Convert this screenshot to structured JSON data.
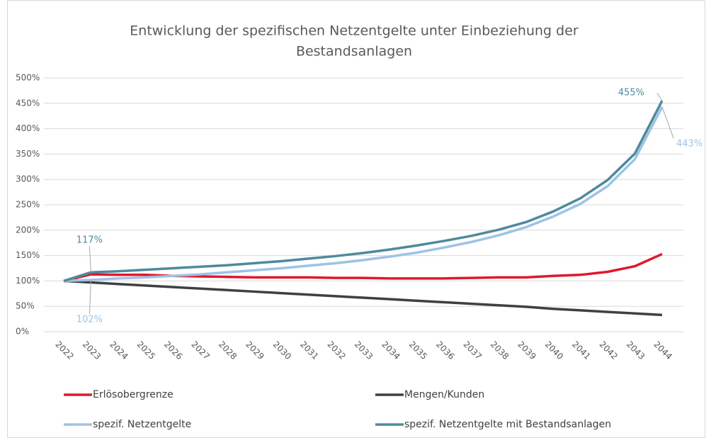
{
  "chart_data": {
    "type": "line",
    "title": [
      "Entwicklung der spezifischen Netzentgelte unter Einbeziehung der",
      "Bestandsanlagen"
    ],
    "categories": [
      "2022",
      "2023",
      "2024",
      "2025",
      "2026",
      "2027",
      "2028",
      "2029",
      "2030",
      "2031",
      "2032",
      "2033",
      "2034",
      "2035",
      "2036",
      "2037",
      "2038",
      "2039",
      "2040",
      "2041",
      "2042",
      "2043",
      "2044"
    ],
    "ylim": [
      0,
      500
    ],
    "yticks": [
      {
        "value": 0,
        "label": "0%"
      },
      {
        "value": 50,
        "label": "50%"
      },
      {
        "value": 100,
        "label": "100%"
      },
      {
        "value": 150,
        "label": "150%"
      },
      {
        "value": 200,
        "label": "200%"
      },
      {
        "value": 250,
        "label": "250%"
      },
      {
        "value": 300,
        "label": "300%"
      },
      {
        "value": 350,
        "label": "350%"
      },
      {
        "value": 400,
        "label": "400%"
      },
      {
        "value": 450,
        "label": "450%"
      },
      {
        "value": 500,
        "label": "500%"
      }
    ],
    "grid": true,
    "legend": "bottom",
    "series": [
      {
        "name": "Erlösobergrenze",
        "color": "#e0182d",
        "values": [
          100,
          113,
          112,
          112,
          110,
          109,
          108,
          107,
          107,
          107,
          106,
          106,
          105,
          105,
          105,
          106,
          107,
          107,
          110,
          112,
          118,
          129,
          153
        ]
      },
      {
        "name": "Mengen/Kunden",
        "color": "#404040",
        "values": [
          100,
          97,
          94,
          91,
          88,
          85,
          82,
          79,
          76,
          73,
          70,
          67,
          64,
          61,
          58,
          55,
          52,
          49,
          45,
          42,
          39,
          36,
          33
        ]
      },
      {
        "name": "spezif. Netzentgelte",
        "color": "#9dc3e6",
        "values": [
          100,
          102,
          105,
          107,
          110,
          113,
          117,
          121,
          125,
          130,
          135,
          141,
          148,
          156,
          166,
          177,
          190,
          206,
          227,
          252,
          287,
          340,
          443
        ],
        "value_labels": [
          null,
          "102%",
          null,
          null,
          null,
          null,
          null,
          null,
          null,
          null,
          null,
          null,
          null,
          null,
          null,
          null,
          null,
          null,
          null,
          null,
          null,
          null,
          "443%"
        ]
      },
      {
        "name": "spezif. Netzentgelte mit Bestandsanlagen",
        "color": "#4e8a9c",
        "values": [
          100,
          117,
          119,
          122,
          125,
          128,
          131,
          135,
          139,
          144,
          149,
          155,
          162,
          170,
          179,
          189,
          201,
          216,
          237,
          263,
          299,
          351,
          455
        ],
        "value_labels": [
          null,
          "117%",
          null,
          null,
          null,
          null,
          null,
          null,
          null,
          null,
          null,
          null,
          null,
          null,
          null,
          null,
          null,
          null,
          null,
          null,
          null,
          null,
          "455%"
        ]
      }
    ]
  }
}
